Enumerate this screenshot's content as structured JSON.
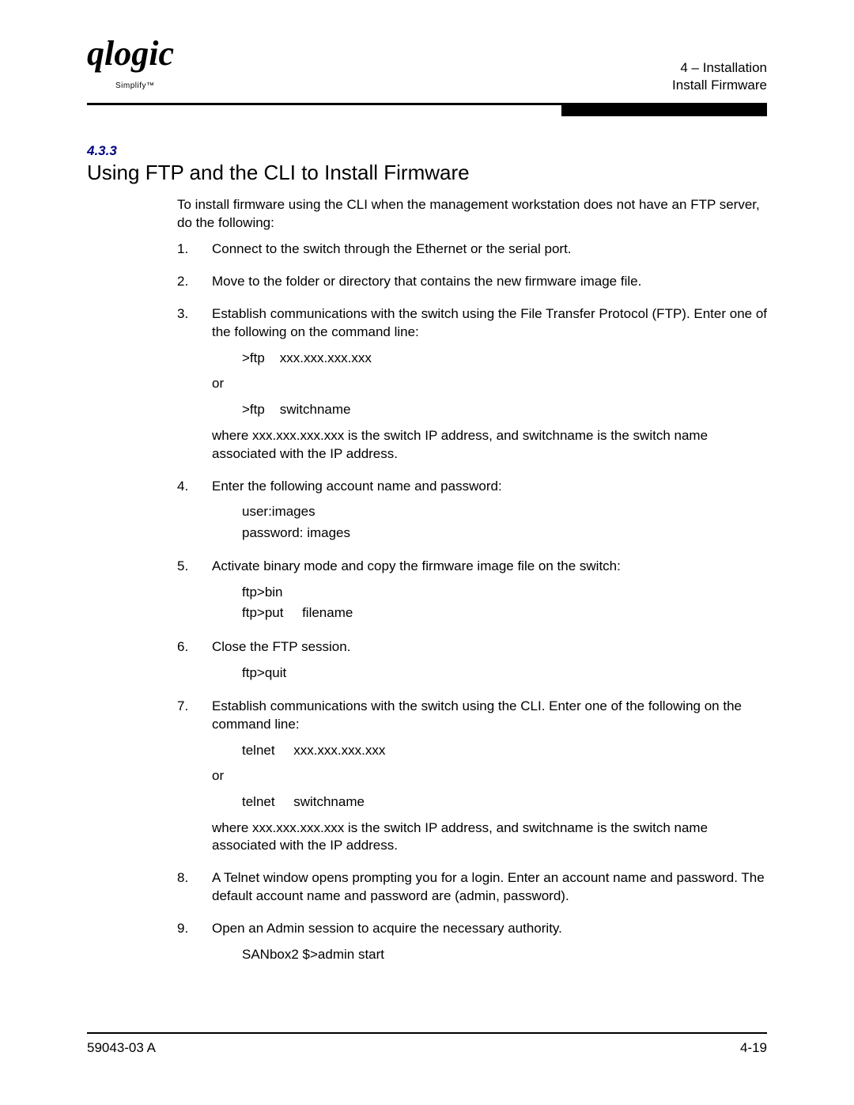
{
  "header": {
    "logo_main": "qlogic",
    "logo_sub": "Simplify™",
    "chapter": "4 – Installation",
    "section": "Install Firmware"
  },
  "section": {
    "number": "4.3.3",
    "title": "Using FTP and the CLI to Install Firmware",
    "intro": "To install firmware using the CLI when the management workstation does not have an FTP server, do the following:"
  },
  "steps": [
    {
      "num": "1.",
      "paras": [
        "Connect to the switch through the Ethernet or the serial port."
      ]
    },
    {
      "num": "2.",
      "paras": [
        "Move to the folder or directory that contains the new firmware image file."
      ]
    },
    {
      "num": "3.",
      "paras": [
        "Establish communications with the switch using the File Transfer Protocol (FTP). Enter one of the following on the command line:"
      ],
      "cmd1": ">ftp    xxx.xxx.xxx.xxx",
      "or": "or",
      "cmd2": ">ftp    switchname",
      "after": "where xxx.xxx.xxx.xxx is the switch IP address, and switchname is the switch name associated with the IP address."
    },
    {
      "num": "4.",
      "paras": [
        "Enter the following account name and password:"
      ],
      "cmd1": "user:images",
      "cmd2": "password: images"
    },
    {
      "num": "5.",
      "paras": [
        "Activate binary mode and copy the firmware image file on the switch:"
      ],
      "cmd1": "ftp>bin",
      "cmd2": "ftp>put     filename"
    },
    {
      "num": "6.",
      "paras": [
        "Close the FTP session."
      ],
      "cmd1": "ftp>quit"
    },
    {
      "num": "7.",
      "paras": [
        "Establish communications with the switch using the CLI. Enter one of the following on the command line:"
      ],
      "cmd1": "telnet     xxx.xxx.xxx.xxx",
      "or": "or",
      "cmd2": "telnet     switchname",
      "after": "where xxx.xxx.xxx.xxx is the switch IP address, and switchname is the switch name associated with the IP address."
    },
    {
      "num": "8.",
      "paras": [
        "A Telnet window opens prompting you for a login. Enter an account name and password. The default account name and password are (admin, password)."
      ]
    },
    {
      "num": "9.",
      "paras": [
        "Open an Admin session to acquire the necessary authority."
      ],
      "cmd1": "SANbox2 $>admin start"
    }
  ],
  "footer": {
    "left": "59043-03 A",
    "right": "4-19"
  }
}
